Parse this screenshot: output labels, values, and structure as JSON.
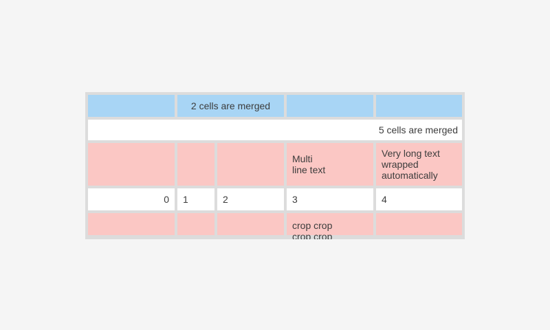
{
  "page": {
    "background_color": "#f5f5f5"
  },
  "table": {
    "border_color": "#dcdcdc",
    "colors": {
      "header_blue": "#a8d5f5",
      "pink": "#fbc7c4",
      "white": "#ffffff",
      "text": "#3c3c3c"
    },
    "rows": [
      {
        "name": "blue-header-row",
        "cells": [
          {
            "text": ""
          },
          {
            "text": "2 cells are merged",
            "merge": "columns 2-3"
          },
          {
            "text": ""
          },
          {
            "text": ""
          }
        ]
      },
      {
        "name": "full-merged-row",
        "cells": [
          {
            "text": "5 cells are merged",
            "merge": "columns 1-5"
          }
        ]
      },
      {
        "name": "pink-wrapped-text-row",
        "cells": [
          {
            "text": ""
          },
          {
            "text": ""
          },
          {
            "text": ""
          },
          {
            "text": "Multi\nline text"
          },
          {
            "text": "Very long text wrapped automatically"
          }
        ]
      },
      {
        "name": "number-row",
        "cells": [
          {
            "text": "0"
          },
          {
            "text": "1"
          },
          {
            "text": "2"
          },
          {
            "text": "3"
          },
          {
            "text": "4"
          }
        ]
      },
      {
        "name": "cropped-row",
        "cells": [
          {
            "text": ""
          },
          {
            "text": ""
          },
          {
            "text": ""
          },
          {
            "text": "crop crop crop crop"
          },
          {
            "text": ""
          }
        ]
      }
    ]
  }
}
